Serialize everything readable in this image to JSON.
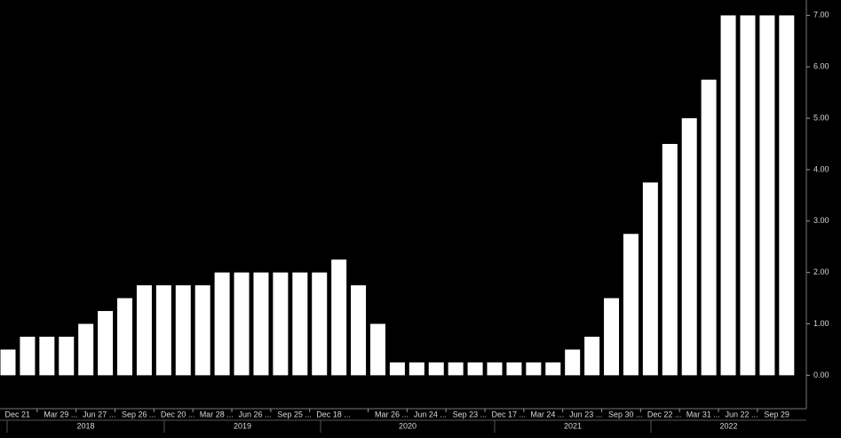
{
  "chart_data": {
    "type": "bar",
    "categories": [
      "Dec 21",
      null,
      "Mar 29 ...",
      null,
      "Jun 27 ...",
      null,
      "Sep 26 ...",
      null,
      "Dec 20 ...",
      null,
      "Mar 28 ...",
      null,
      "Jun 26 ...",
      null,
      "Sep 25 ...",
      null,
      "Dec 18 ...",
      null,
      null,
      "Mar 26 ...",
      null,
      "Jun 24 ...",
      null,
      "Sep 23 ...",
      null,
      "Dec 17 ...",
      null,
      "Mar 24 ...",
      null,
      "Jun 23 ...",
      null,
      "Sep 30 ...",
      null,
      "Dec 22 ...",
      null,
      "Mar 31 ...",
      null,
      "Jun 22 ...",
      null,
      "Sep 29",
      null
    ],
    "values": [
      0.5,
      0.75,
      0.75,
      0.75,
      1.0,
      1.25,
      1.5,
      1.75,
      1.75,
      1.75,
      1.75,
      2.0,
      2.0,
      2.0,
      2.0,
      2.0,
      2.0,
      2.25,
      1.75,
      1.0,
      0.25,
      0.25,
      0.25,
      0.25,
      0.25,
      0.25,
      0.25,
      0.25,
      0.25,
      0.5,
      0.75,
      1.5,
      2.75,
      3.75,
      4.5,
      5.0,
      5.75,
      7.0,
      7.0,
      7.0,
      7.0
    ],
    "color": "#ffffff",
    "year_labels": [
      "2018",
      "2019",
      "2020",
      "2021",
      "2022"
    ],
    "ylim": [
      -0.65,
      7.3
    ],
    "yticks": [
      {
        "value": 0,
        "label": "0.00"
      },
      {
        "value": 1,
        "label": "1.00"
      },
      {
        "value": 2,
        "label": "2.00"
      },
      {
        "value": 3,
        "label": "3.00"
      },
      {
        "value": 4,
        "label": "4.00"
      },
      {
        "value": 5,
        "label": "5.00"
      },
      {
        "value": 6,
        "label": "6.00"
      },
      {
        "value": 7,
        "label": "7.00"
      }
    ],
    "grid": false
  }
}
